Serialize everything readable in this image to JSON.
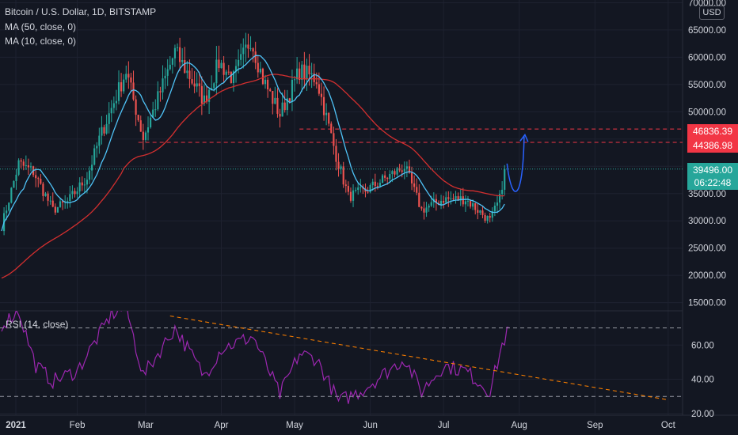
{
  "header": {
    "symbol_line": "Bitcoin / U.S. Dollar, 1D, BITSTAMP",
    "ma50_label": "MA (50, close, 0)",
    "ma10_label": "MA (10, close, 0)",
    "currency": "USD"
  },
  "rsi_label": "RSI (14, close)",
  "price_tags": [
    {
      "text": "46836.39",
      "color": "#f23645"
    },
    {
      "text": "44386.98",
      "color": "#f23645"
    },
    {
      "text": "39496.00",
      "color": "#26a69a"
    },
    {
      "text": "06:22:48",
      "color": "#26a69a"
    }
  ],
  "colors": {
    "up": "#26a69a",
    "down": "#ef5350",
    "ma50": "#d32f2f",
    "ma10": "#4fc3f7",
    "rsi": "#9c27b0",
    "projection": "#2962ff",
    "level_line": "#f23645",
    "trend_line": "#f57c00"
  },
  "chart_data": [
    {
      "type": "candlestick",
      "title": "Bitcoin / U.S. Dollar, 1D, BITSTAMP",
      "x_ticks": [
        "2021",
        "Feb",
        "Mar",
        "Apr",
        "May",
        "Jun",
        "Jul",
        "Aug",
        "Sep",
        "Oct"
      ],
      "y_ticks": [
        15000,
        20000,
        25000,
        30000,
        35000,
        40000,
        45000,
        50000,
        55000,
        60000,
        65000,
        70000
      ],
      "y_tick_labels": [
        "15000.00",
        "20000.00",
        "25000.00",
        "30000.00",
        "35000.00",
        "40000.00",
        "45000.00",
        "50000.00",
        "55000.00",
        "60000.00",
        "65000.00",
        "70000.00"
      ],
      "ylim": [
        13500,
        70500
      ],
      "xlim": [
        "2021-01-01",
        "2021-10-03"
      ],
      "close_anchors": [
        [
          "2021-01-01",
          29000
        ],
        [
          "2021-01-08",
          40500
        ],
        [
          "2021-01-14",
          39000
        ],
        [
          "2021-01-22",
          32000
        ],
        [
          "2021-01-28",
          33500
        ],
        [
          "2021-02-05",
          38000
        ],
        [
          "2021-02-10",
          45000
        ],
        [
          "2021-02-21",
          57500
        ],
        [
          "2021-02-28",
          45200
        ],
        [
          "2021-03-13",
          61000
        ],
        [
          "2021-03-25",
          52000
        ],
        [
          "2021-03-31",
          59000
        ],
        [
          "2021-04-06",
          56000
        ],
        [
          "2021-04-13",
          63500
        ],
        [
          "2021-04-18",
          56000
        ],
        [
          "2021-04-25",
          49500
        ],
        [
          "2021-05-03",
          57500
        ],
        [
          "2021-05-10",
          56000
        ],
        [
          "2021-05-18",
          42000
        ],
        [
          "2021-05-23",
          34500
        ],
        [
          "2021-05-30",
          35500
        ],
        [
          "2021-06-15",
          40000
        ],
        [
          "2021-06-22",
          32000
        ],
        [
          "2021-07-01",
          34000
        ],
        [
          "2021-07-10",
          34000
        ],
        [
          "2021-07-20",
          30000
        ],
        [
          "2021-07-24",
          34000
        ],
        [
          "2021-07-26",
          39496
        ]
      ],
      "ma50_label": "MA (50, close, 0)",
      "ma10_label": "MA (10, close, 0)",
      "levels": [
        46836.39,
        44386.98
      ],
      "last_price": 39496.0,
      "countdown": "06:22:48"
    },
    {
      "type": "line",
      "title": "RSI (14, close)",
      "y_ticks": [
        20,
        40,
        60
      ],
      "y_tick_labels": [
        "20.00",
        "40.00",
        "60.00"
      ],
      "ylim": [
        19,
        80
      ],
      "bands": [
        70,
        30
      ],
      "rsi_anchors": [
        [
          "2021-01-01",
          72
        ],
        [
          "2021-01-08",
          80
        ],
        [
          "2021-01-15",
          48
        ],
        [
          "2021-01-22",
          39
        ],
        [
          "2021-02-01",
          45
        ],
        [
          "2021-02-10",
          66
        ],
        [
          "2021-02-15",
          78
        ],
        [
          "2021-02-21",
          82
        ],
        [
          "2021-02-28",
          42
        ],
        [
          "2021-03-13",
          70
        ],
        [
          "2021-03-25",
          42
        ],
        [
          "2021-04-01",
          58
        ],
        [
          "2021-04-14",
          65
        ],
        [
          "2021-04-25",
          31
        ],
        [
          "2021-05-03",
          55
        ],
        [
          "2021-05-10",
          52
        ],
        [
          "2021-05-19",
          27
        ],
        [
          "2021-05-28",
          33
        ],
        [
          "2021-06-15",
          52
        ],
        [
          "2021-06-22",
          33
        ],
        [
          "2021-07-01",
          48
        ],
        [
          "2021-07-10",
          45
        ],
        [
          "2021-07-20",
          33
        ],
        [
          "2021-07-25",
          60
        ],
        [
          "2021-07-28",
          70
        ]
      ],
      "trendline": [
        [
          "2021-03-11",
          77
        ],
        [
          "2021-10-01",
          28
        ]
      ]
    }
  ]
}
